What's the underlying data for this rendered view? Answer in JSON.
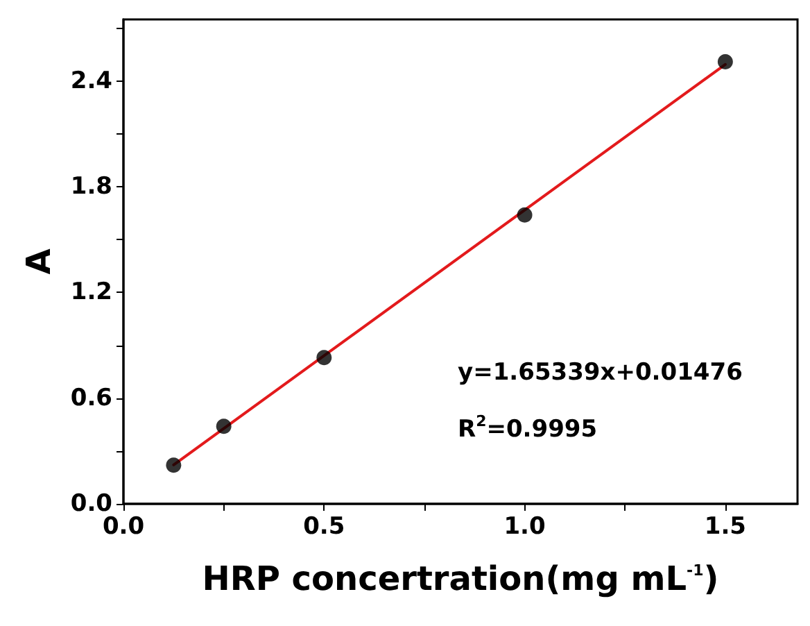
{
  "chart_data": {
    "type": "scatter",
    "xlabel": "HRP concertration(mg mL$^{-1}$)",
    "ylabel": "A",
    "x": [
      0.125,
      0.25,
      0.5,
      1.0,
      1.5
    ],
    "series": [
      {
        "color": "#000000",
        "marker": "circle",
        "values": [
          0.22,
          0.44,
          0.83,
          1.64,
          2.51
        ]
      },
      {
        "type": "line",
        "color": "#e31a1c",
        "marker": "none",
        "line_style": "solid",
        "x": [
          0.125,
          1.5
        ],
        "values": [
          0.2214,
          2.4948
        ]
      }
    ],
    "xlim": [
      0,
      1.68
    ],
    "ylim": [
      0,
      2.75
    ],
    "xticks": [
      {
        "value": 0,
        "label": "0.0"
      },
      {
        "value": 0.25,
        "label": null
      },
      {
        "value": 0.5,
        "label": "0.5"
      },
      {
        "value": 0.75,
        "label": null
      },
      {
        "value": 1,
        "label": "1.0"
      },
      {
        "value": 1.25,
        "label": null
      },
      {
        "value": 1.5,
        "label": "1.5"
      }
    ],
    "yticks": [
      {
        "value": 0,
        "label": "0.0"
      },
      {
        "value": 0.3,
        "label": null
      },
      {
        "value": 0.6,
        "label": "0.6"
      },
      {
        "value": 0.9,
        "label": null
      },
      {
        "value": 1.2,
        "label": "1.2"
      },
      {
        "value": 1.5,
        "label": null
      },
      {
        "value": 1.8,
        "label": "1.8"
      },
      {
        "value": 2.1,
        "label": null
      },
      {
        "value": 2.4,
        "label": "2.4"
      },
      {
        "value": 2.7,
        "label": null
      }
    ],
    "annotations": [
      "y=1.65339x+0.01476",
      "R$^{2}$=0.9995"
    ],
    "grid": false
  }
}
